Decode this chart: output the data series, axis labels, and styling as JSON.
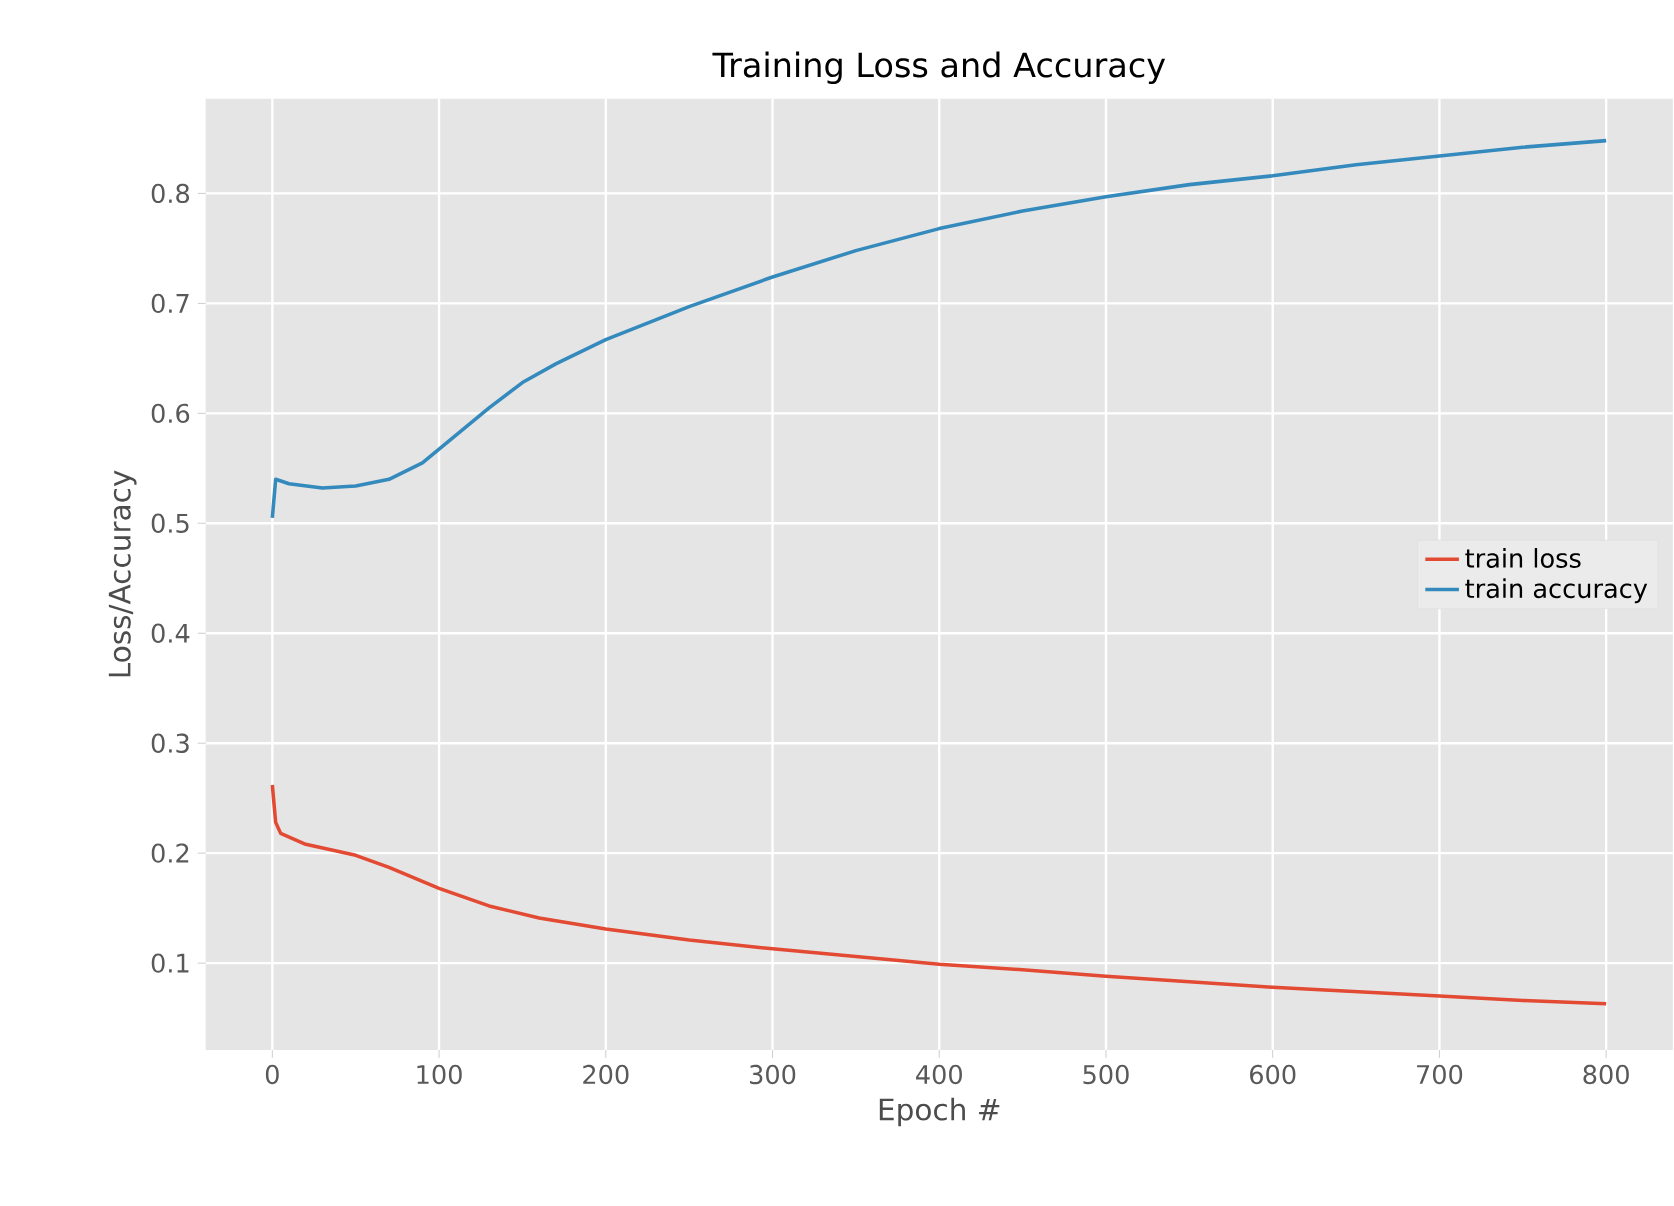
{
  "chart_data": {
    "type": "line",
    "title": "Training Loss and Accuracy",
    "xlabel": "Epoch #",
    "ylabel": "Loss/Accuracy",
    "xlim": [
      -40,
      840
    ],
    "ylim": [
      0.021,
      0.886
    ],
    "xticks": [
      0,
      100,
      200,
      300,
      400,
      500,
      600,
      700,
      800
    ],
    "yticks": [
      0.1,
      0.2,
      0.3,
      0.4,
      0.5,
      0.6,
      0.7,
      0.8
    ],
    "grid": true,
    "legend": "right",
    "marker": "none",
    "line_style": "solid",
    "series": [
      {
        "name": "train loss",
        "color": "#e24a33",
        "x": [
          0,
          2,
          5,
          20,
          50,
          70,
          100,
          130,
          160,
          200,
          250,
          300,
          350,
          400,
          450,
          500,
          550,
          600,
          650,
          700,
          750,
          800
        ],
        "values": [
          0.262,
          0.228,
          0.218,
          0.208,
          0.198,
          0.187,
          0.168,
          0.152,
          0.141,
          0.131,
          0.121,
          0.113,
          0.106,
          0.099,
          0.094,
          0.088,
          0.083,
          0.078,
          0.074,
          0.07,
          0.066,
          0.063
        ]
      },
      {
        "name": "train accuracy",
        "color": "#348abd",
        "x": [
          0,
          2,
          10,
          30,
          50,
          70,
          90,
          110,
          130,
          150,
          170,
          200,
          250,
          300,
          350,
          400,
          450,
          500,
          550,
          600,
          650,
          700,
          750,
          800
        ],
        "values": [
          0.505,
          0.54,
          0.536,
          0.532,
          0.534,
          0.54,
          0.555,
          0.58,
          0.605,
          0.628,
          0.645,
          0.667,
          0.697,
          0.724,
          0.748,
          0.768,
          0.784,
          0.797,
          0.808,
          0.816,
          0.826,
          0.834,
          0.842,
          0.848
        ]
      }
    ]
  }
}
